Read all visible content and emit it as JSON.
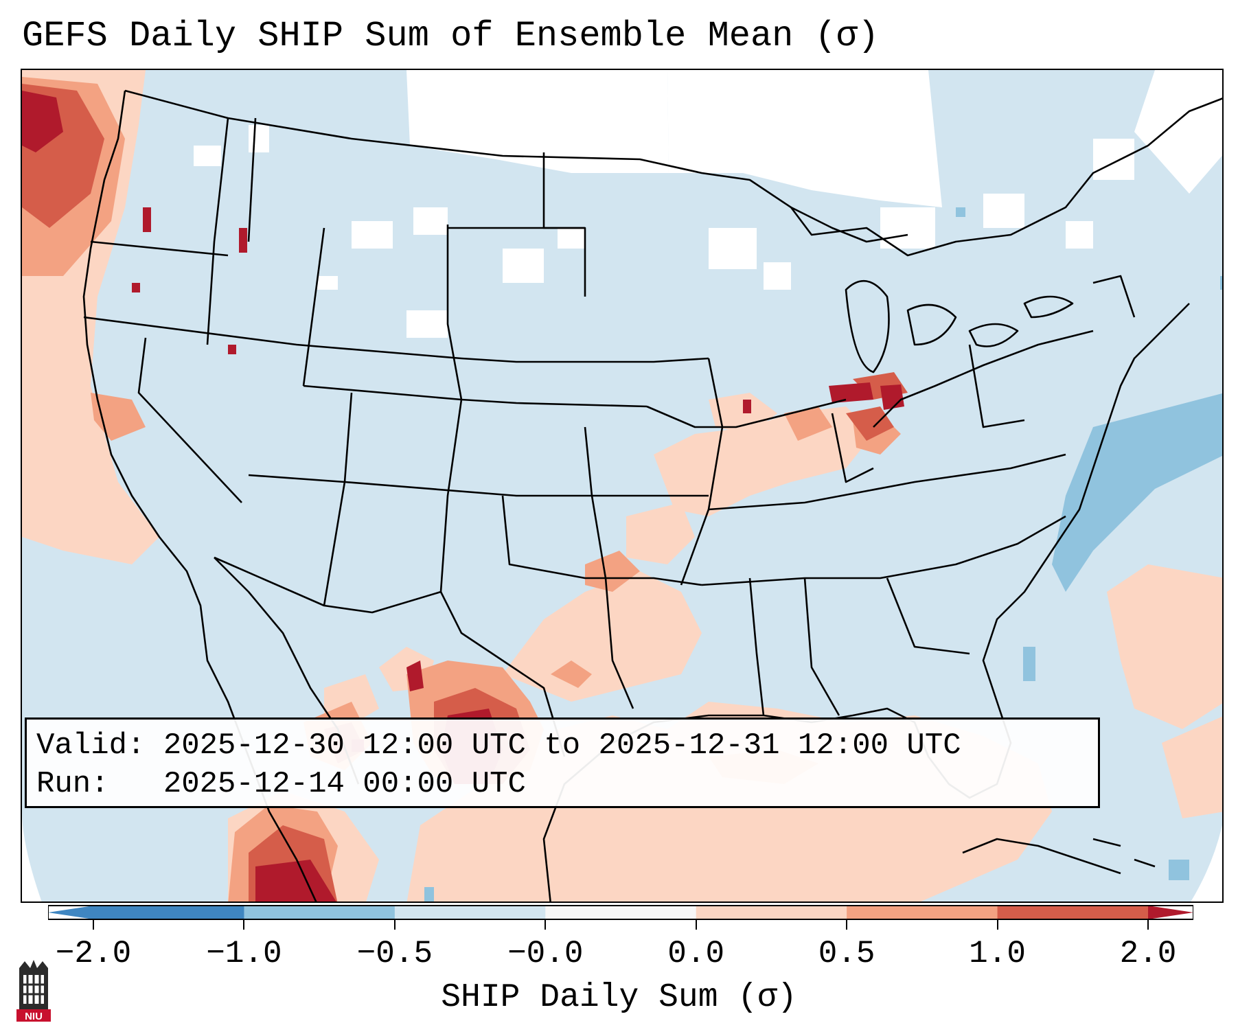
{
  "title": "GEFS Daily SHIP Sum of Ensemble Mean (σ)",
  "info": {
    "valid_label": "Valid:",
    "valid_value": "2025-12-30 12:00 UTC to 2025-12-31 12:00 UTC",
    "run_label": "Run:",
    "run_value": "2025-12-14 00:00 UTC"
  },
  "colorbar": {
    "label": "SHIP Daily Sum (σ)",
    "ticks": [
      "−2.0",
      "−1.0",
      "−0.5",
      "−0.0",
      "0.0",
      "0.5",
      "1.0",
      "2.0"
    ],
    "colors": [
      "#3f86c1",
      "#90c3de",
      "#d2e5f0",
      "#f7f7f7",
      "#fcd6c3",
      "#f3a282",
      "#d55d4a",
      "#b01a2c"
    ]
  },
  "logo": {
    "text": "NIU",
    "color": "#c8102e"
  },
  "map_colors": {
    "neutral": "#d2e5f0",
    "light_blue": "#90c3de",
    "light_red": "#fcd6c3",
    "mid_red": "#f3a282",
    "red": "#d55d4a",
    "dark_red": "#b01a2c",
    "white": "#ffffff"
  }
}
